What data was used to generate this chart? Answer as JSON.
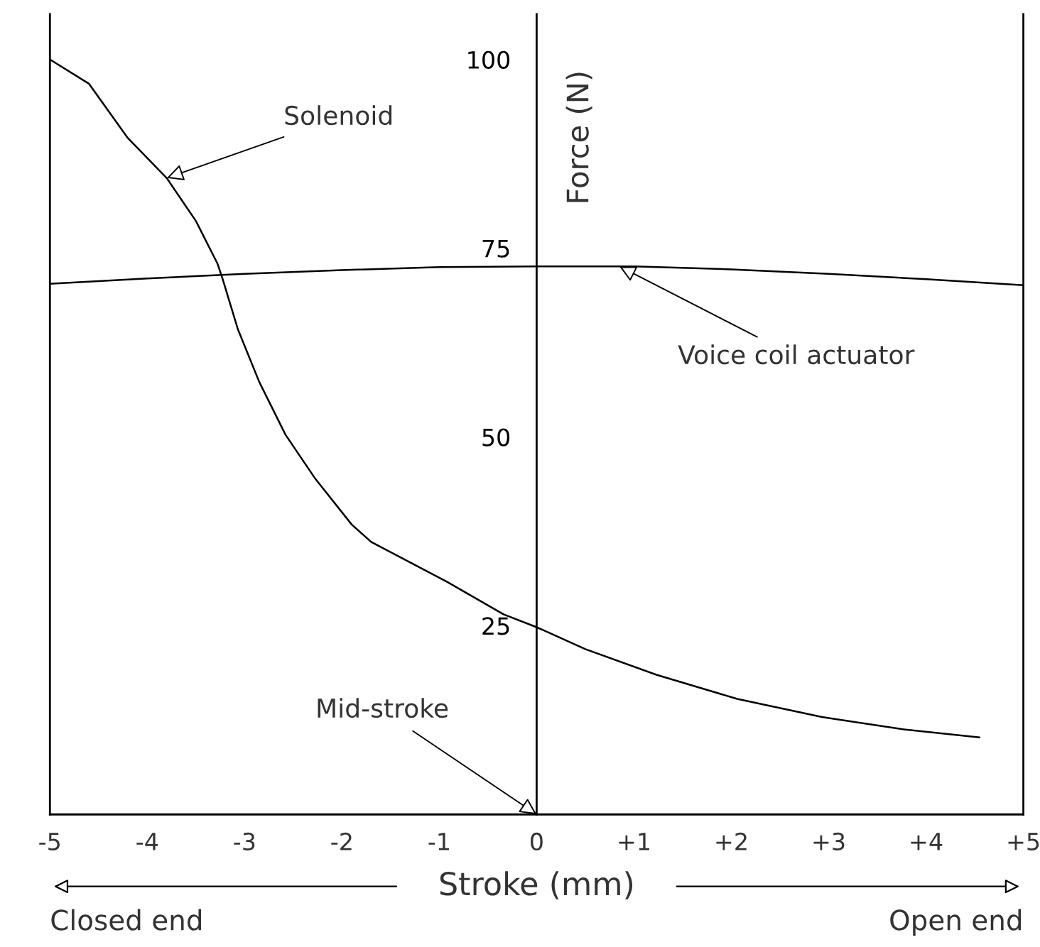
{
  "chart_data": {
    "type": "line",
    "xlabel": "Stroke (mm)",
    "ylabel": "Force (N)",
    "xlim": [
      -5,
      5
    ],
    "ylim": [
      0,
      106
    ],
    "xticks": [
      -5,
      -4,
      -3,
      -2,
      -1,
      0,
      {
        "value": 1,
        "label": "+1"
      },
      {
        "value": 2,
        "label": "+2"
      },
      {
        "value": 3,
        "label": "+3"
      },
      {
        "value": 4,
        "label": "+4"
      },
      {
        "value": 5,
        "label": "+5"
      }
    ],
    "yticks": [
      {
        "value": 25,
        "label": "25"
      },
      {
        "value": 50,
        "label": "50"
      },
      {
        "value": 75,
        "label": "75"
      },
      {
        "value": 100,
        "label": "100"
      }
    ],
    "grid": false,
    "legend": false,
    "marker": "none",
    "line_style": "solid",
    "series": [
      {
        "color": "#000000",
        "x": [
          -5,
          -4.6,
          -4.2,
          -3.8,
          -3.5,
          -3.28,
          -3.23,
          -3.07,
          -2.85,
          -2.58,
          -2.27,
          -1.9,
          -1.7,
          -0.92,
          -0.34,
          0,
          0.5,
          1.23,
          2.06,
          2.93,
          3.75,
          4.55
        ],
        "values": [
          100,
          96.8,
          89.6,
          84.3,
          78.6,
          73,
          71.1,
          64.3,
          57.3,
          50.3,
          44.4,
          38.4,
          36.1,
          30.8,
          26.5,
          24.8,
          21.9,
          18.5,
          15.3,
          12.9,
          11.3,
          10.2
        ]
      },
      {
        "color": "#000000",
        "x": [
          -5,
          -4,
          -3,
          -2,
          -1,
          0,
          1,
          2,
          3,
          4,
          5
        ],
        "values": [
          70.3,
          71,
          71.6,
          72.1,
          72.5,
          72.6,
          72.6,
          72.2,
          71.6,
          70.9,
          70.1
        ]
      }
    ],
    "annotations": [
      {
        "text": "Solenoid",
        "x": -3.8,
        "y": 84.3
      },
      {
        "text": "Voice coil actuator",
        "x": 0.85,
        "y": 72.6
      },
      "Mid-stroke",
      "Closed end",
      "Open end"
    ]
  }
}
